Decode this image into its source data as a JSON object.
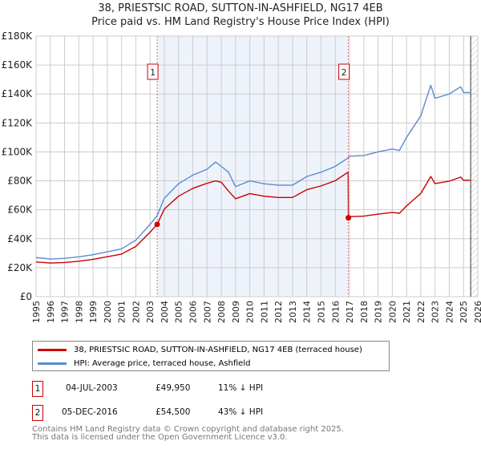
{
  "colors": {
    "property": "#cc0000",
    "hpi": "#5b8bd0",
    "shade": "#eef3fb"
  },
  "chart_data": {
    "type": "line",
    "title": "38, PRIESTSIC ROAD, SUTTON-IN-ASHFIELD, NG17 4EB",
    "subtitle": "Price paid vs. HM Land Registry's House Price Index (HPI)",
    "xlim": [
      1995,
      2026
    ],
    "ylim": [
      0,
      180000
    ],
    "yticks": [
      0,
      20000,
      40000,
      60000,
      80000,
      100000,
      120000,
      140000,
      160000,
      180000
    ],
    "ytick_labels": [
      "£0",
      "£20K",
      "£40K",
      "£60K",
      "£80K",
      "£100K",
      "£120K",
      "£140K",
      "£160K",
      "£180K"
    ],
    "xticks": [
      "1995",
      "1996",
      "1997",
      "1998",
      "1999",
      "2000",
      "2001",
      "2002",
      "2003",
      "2004",
      "2005",
      "2006",
      "2007",
      "2008",
      "2009",
      "2010",
      "2011",
      "2012",
      "2013",
      "2014",
      "2015",
      "2016",
      "2017",
      "2018",
      "2019",
      "2020",
      "2021",
      "2022",
      "2023",
      "2024",
      "2025",
      "2026"
    ],
    "grid": true,
    "series": [
      {
        "name": "HPI: Average price, terraced house, Ashfield",
        "x": [
          1995,
          1996,
          1997,
          1998,
          1999,
          2000,
          2001,
          2002,
          2003,
          2003.5,
          2004,
          2005,
          2006,
          2007,
          2007.6,
          2008,
          2008.5,
          2009,
          2010,
          2011,
          2012,
          2013,
          2014,
          2015,
          2016,
          2016.92,
          2017,
          2018,
          2019,
          2020,
          2020.5,
          2021,
          2022,
          2022.7,
          2023,
          2024,
          2024.8,
          2025,
          2025.5
        ],
        "values": [
          27000,
          26000,
          26500,
          27500,
          29000,
          31000,
          33000,
          39000,
          50000,
          56000,
          68000,
          78000,
          84000,
          88000,
          93000,
          90000,
          86000,
          76000,
          80000,
          78000,
          77000,
          77000,
          83000,
          86000,
          90000,
          96000,
          97000,
          97500,
          100000,
          102000,
          101000,
          110000,
          125000,
          146000,
          137000,
          140000,
          145000,
          141000,
          141000
        ]
      },
      {
        "name": "38, PRIESTSIC ROAD, SUTTON-IN-ASHFIELD, NG17 4EB (terraced house)",
        "x": [
          1995,
          1996,
          1997,
          1998,
          1999,
          2000,
          2001,
          2002,
          2003,
          2003.5,
          2004,
          2005,
          2006,
          2007,
          2007.6,
          2008,
          2008.5,
          2009,
          2010,
          2011,
          2012,
          2013,
          2014,
          2015,
          2016,
          2016.9,
          2016.92,
          2017,
          2018,
          2019,
          2020,
          2020.5,
          2021,
          2022,
          2022.7,
          2023,
          2024,
          2024.8,
          2025,
          2025.5
        ],
        "values": [
          24000,
          23200,
          23600,
          24500,
          25800,
          27600,
          29400,
          34700,
          44500,
          49950,
          60500,
          69400,
          74800,
          78300,
          80000,
          79000,
          73000,
          67600,
          71200,
          69400,
          68500,
          68500,
          73900,
          76500,
          80100,
          86000,
          54500,
          55300,
          55600,
          57000,
          58200,
          57600,
          62700,
          71300,
          83000,
          78100,
          79800,
          82600,
          80400,
          80400
        ]
      }
    ],
    "sales": [
      {
        "label": "1",
        "date": "04-JUL-2003",
        "x": 2003.5,
        "price": "£49,950",
        "value": 49950,
        "hpi": "11% ↓ HPI"
      },
      {
        "label": "2",
        "date": "05-DEC-2016",
        "x": 2016.92,
        "price": "£54,500",
        "value": 54500,
        "hpi": "43% ↓ HPI"
      }
    ],
    "forecast_start": 2025.5
  },
  "footer": {
    "line1": "Contains HM Land Registry data © Crown copyright and database right 2025.",
    "line2": "This data is licensed under the Open Government Licence v3.0."
  }
}
